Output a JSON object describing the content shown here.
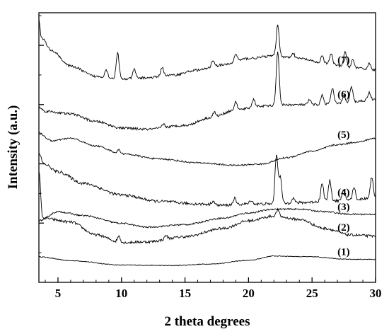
{
  "chart_data": {
    "type": "line",
    "xlabel": "2 theta degrees",
    "ylabel": "Intensity (a.u.)",
    "xlim": [
      3.5,
      30
    ],
    "x_ticks": [
      5,
      10,
      15,
      20,
      25,
      30
    ],
    "x_tick_labels": [
      "5",
      "10",
      "15",
      "20",
      "25",
      "30"
    ],
    "y_tick_count": 4,
    "ylim": [
      0,
      100
    ],
    "y_ticks_shown": false,
    "grid": false,
    "legend": "inline labels at right",
    "line_color": "#000000",
    "series": [
      {
        "name": "(1)",
        "noise": 0.15,
        "points": [
          [
            3.5,
            8
          ],
          [
            6,
            6.5
          ],
          [
            10,
            4.8
          ],
          [
            14,
            4.6
          ],
          [
            17,
            5.2
          ],
          [
            20,
            6.6
          ],
          [
            22,
            8.3
          ],
          [
            25,
            8
          ],
          [
            28,
            7
          ],
          [
            30,
            7
          ]
        ],
        "peaks": []
      },
      {
        "name": "(2)",
        "noise": 0.5,
        "points": [
          [
            3.5,
            41
          ],
          [
            3.8,
            23
          ],
          [
            6,
            21.5
          ],
          [
            8,
            16.5
          ],
          [
            10,
            13.5
          ],
          [
            12,
            13.8
          ],
          [
            15,
            15.8
          ],
          [
            18,
            19
          ],
          [
            20,
            22
          ],
          [
            22,
            23.8
          ],
          [
            24,
            22.5
          ],
          [
            26,
            19
          ],
          [
            28,
            16.5
          ],
          [
            30,
            16
          ]
        ],
        "peaks": [
          [
            9.8,
            2.5
          ],
          [
            13.5,
            1.5
          ],
          [
            22.3,
            2.5
          ]
        ]
      },
      {
        "name": "(3)",
        "noise": 0.3,
        "points": [
          [
            3.5,
            22
          ],
          [
            5,
            25.5
          ],
          [
            7,
            24
          ],
          [
            10,
            21
          ],
          [
            12,
            19.5
          ],
          [
            15,
            20.5
          ],
          [
            18,
            23
          ],
          [
            20,
            25
          ],
          [
            22,
            26.5
          ],
          [
            24,
            26.5
          ],
          [
            26,
            25.5
          ],
          [
            28,
            24.5
          ],
          [
            30,
            24.5
          ]
        ],
        "peaks": []
      },
      {
        "name": "(4)",
        "noise": 0.55,
        "points": [
          [
            3.5,
            48
          ],
          [
            3.9,
            44
          ],
          [
            5,
            41
          ],
          [
            7,
            36.5
          ],
          [
            10,
            32
          ],
          [
            13,
            29.5
          ],
          [
            16,
            28.5
          ],
          [
            18,
            28
          ],
          [
            20,
            28.5
          ],
          [
            22,
            28.5
          ],
          [
            24,
            29
          ],
          [
            26,
            29.5
          ],
          [
            28,
            30
          ],
          [
            30,
            31
          ]
        ],
        "peaks": [
          [
            17.2,
            1.5
          ],
          [
            18.9,
            2.5
          ],
          [
            20.2,
            1.5
          ],
          [
            22.2,
            19
          ],
          [
            22.5,
            10
          ],
          [
            23.5,
            2
          ],
          [
            25.8,
            7
          ],
          [
            26.4,
            8
          ],
          [
            27.5,
            4
          ],
          [
            28.3,
            5
          ],
          [
            29.7,
            8
          ]
        ]
      },
      {
        "name": "(5)",
        "noise": 0.3,
        "points": [
          [
            3.5,
            56
          ],
          [
            4.5,
            53
          ],
          [
            6,
            54
          ],
          [
            8,
            51
          ],
          [
            10,
            48
          ],
          [
            13,
            46
          ],
          [
            16,
            44.5
          ],
          [
            19,
            43.5
          ],
          [
            21,
            44
          ],
          [
            23,
            46.5
          ],
          [
            25,
            49
          ],
          [
            27,
            51.5
          ],
          [
            28.5,
            52.5
          ],
          [
            30,
            54
          ]
        ],
        "peaks": [
          [
            9.8,
            1.5
          ]
        ]
      },
      {
        "name": "(6)",
        "noise": 0.45,
        "points": [
          [
            3.5,
            66
          ],
          [
            4,
            64.5
          ],
          [
            6,
            63.5
          ],
          [
            8,
            60.5
          ],
          [
            10,
            58
          ],
          [
            12,
            57.5
          ],
          [
            15,
            59
          ],
          [
            17,
            62
          ],
          [
            19,
            65
          ],
          [
            21,
            66.5
          ],
          [
            23,
            67
          ],
          [
            25,
            67
          ],
          [
            27,
            67.5
          ],
          [
            30,
            69
          ]
        ],
        "peaks": [
          [
            13.3,
            1.5
          ],
          [
            17.3,
            2
          ],
          [
            19.0,
            3
          ],
          [
            20.4,
            3
          ],
          [
            22.3,
            21
          ],
          [
            24.8,
            2
          ],
          [
            25.8,
            3.5
          ],
          [
            26.6,
            6
          ],
          [
            27.5,
            3
          ],
          [
            28.1,
            6
          ],
          [
            29.5,
            3
          ]
        ]
      },
      {
        "name": "(7)",
        "noise": 0.45,
        "points": [
          [
            3.5,
            100
          ],
          [
            3.7,
            93
          ],
          [
            4.5,
            88
          ],
          [
            6,
            82
          ],
          [
            8,
            78
          ],
          [
            10,
            77
          ],
          [
            12,
            77.5
          ],
          [
            14,
            78.5
          ],
          [
            16,
            80.5
          ],
          [
            18,
            82.5
          ],
          [
            20,
            85
          ],
          [
            22,
            86
          ],
          [
            24,
            85
          ],
          [
            26,
            83
          ],
          [
            28,
            81.5
          ],
          [
            30,
            80.5
          ]
        ],
        "peaks": [
          [
            8.8,
            3
          ],
          [
            9.7,
            10
          ],
          [
            11.0,
            3.5
          ],
          [
            13.2,
            3.5
          ],
          [
            17.2,
            2.5
          ],
          [
            19.0,
            3
          ],
          [
            22.3,
            12
          ],
          [
            23.5,
            2
          ],
          [
            25.8,
            3
          ],
          [
            26.5,
            4
          ],
          [
            27.6,
            6
          ],
          [
            28.2,
            3
          ],
          [
            29.5,
            2.5
          ]
        ]
      }
    ]
  }
}
